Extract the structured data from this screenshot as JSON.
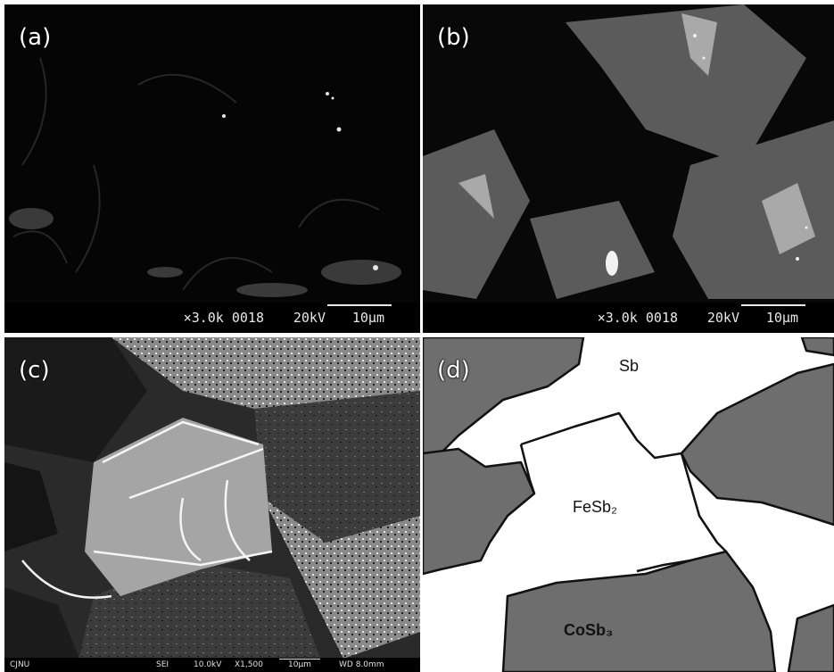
{
  "panels": {
    "a": {
      "label": "(a)",
      "scale_info": {
        "magnification": "×3.0k 0018",
        "voltage": "20kV",
        "scale": "10μm"
      }
    },
    "b": {
      "label": "(b)",
      "scale_info": {
        "magnification": "×3.0k 0018",
        "voltage": "20kV",
        "scale": "10μm"
      }
    },
    "c": {
      "label": "(c)",
      "scale_info": {
        "institution": "CJNU",
        "detector": "SEI",
        "voltage": "10.0kV",
        "magnification": "X1,500",
        "scale": "10μm",
        "working_distance": "WD 8.0mm"
      }
    },
    "d": {
      "label": "(d)",
      "phases": {
        "top": "Sb",
        "middle": "FeSb₂",
        "bottom": "CoSb₃"
      }
    }
  },
  "colors": {
    "phase_grey": "#6e6e6e",
    "background_white": "#ffffff",
    "outline": "#111111"
  }
}
